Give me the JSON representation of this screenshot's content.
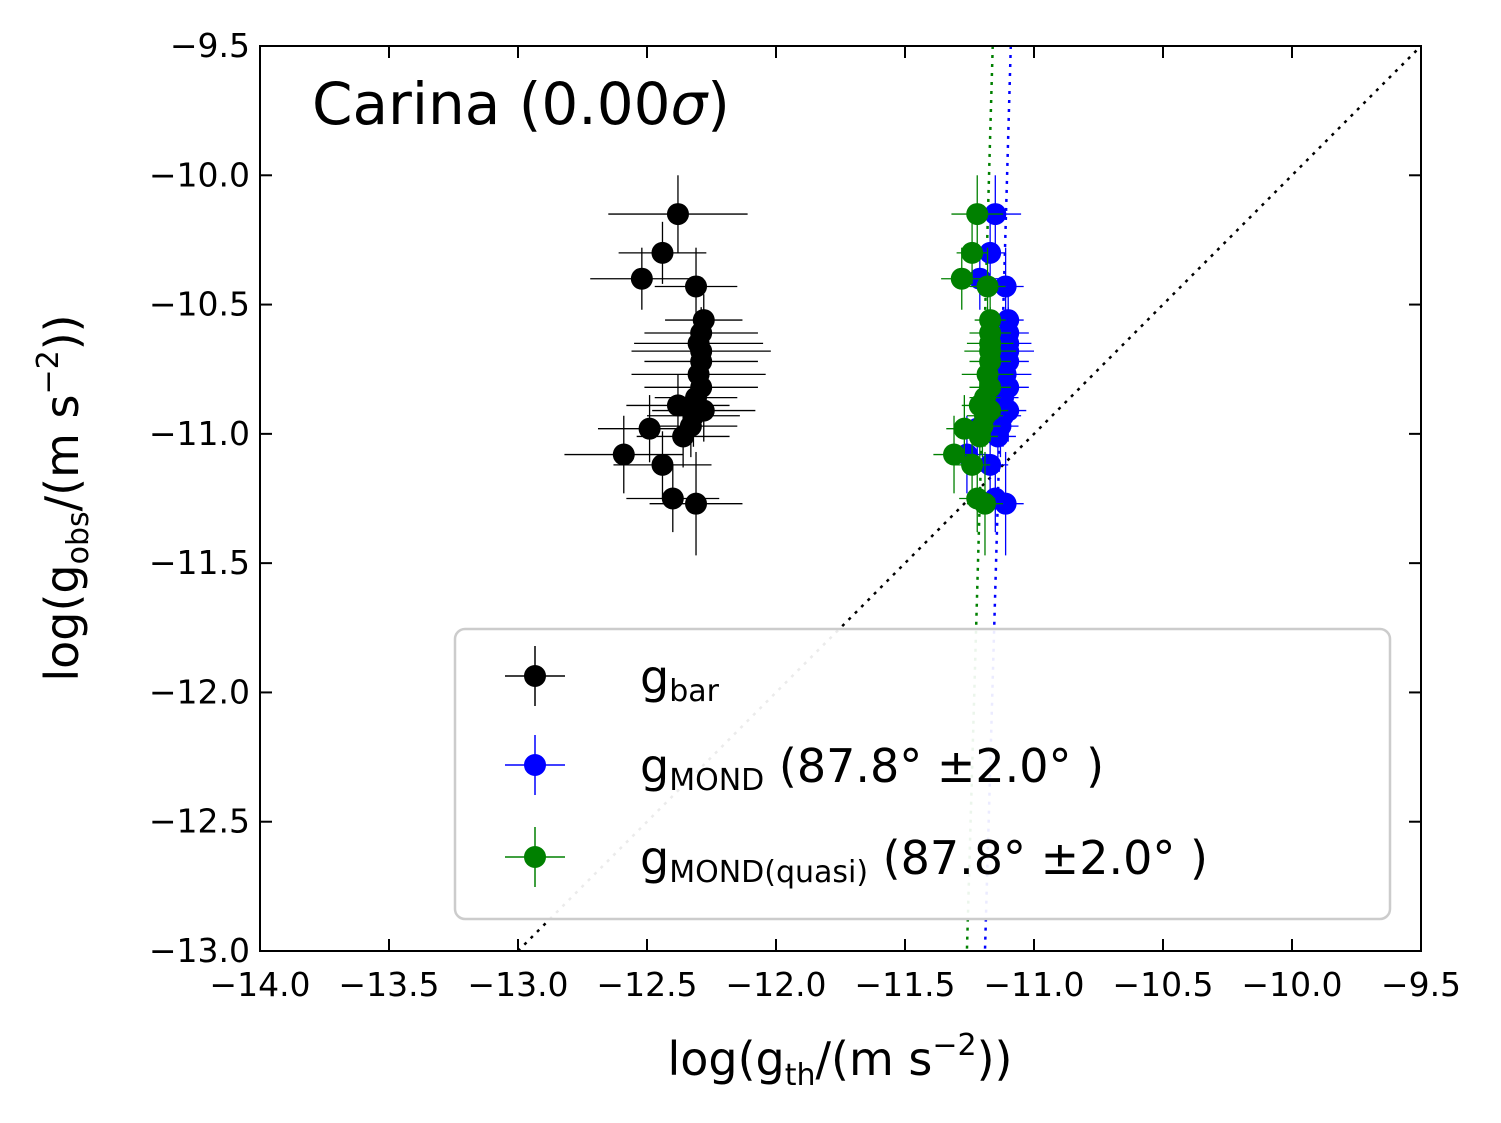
{
  "chart_data": {
    "type": "scatter",
    "title_prefix": "Carina (",
    "title_value": "0.00",
    "title_sigma": "σ",
    "title_suffix": ")",
    "xlabel": {
      "pre": "log(g",
      "sub": "th",
      "mid": "/(m s",
      "sup": "−2",
      "post": "))"
    },
    "ylabel": {
      "pre": "log(g",
      "sub": "obs",
      "mid": "/(m s",
      "sup": "−2",
      "post": "))"
    },
    "xlim": [
      -14.0,
      -9.5
    ],
    "ylim": [
      -13.0,
      -9.5
    ],
    "xticks": [
      -14.0,
      -13.5,
      -13.0,
      -12.5,
      -12.0,
      -11.5,
      -11.0,
      -10.5,
      -10.0,
      -9.5
    ],
    "xtick_labels": [
      "−14.0",
      "−13.5",
      "−13.0",
      "−12.5",
      "−12.0",
      "−11.5",
      "−11.0",
      "−10.5",
      "−10.0",
      "−9.5"
    ],
    "yticks": [
      -9.5,
      -10.0,
      -10.5,
      -11.0,
      -11.5,
      -12.0,
      -12.5,
      -13.0
    ],
    "ytick_labels": [
      "−9.5",
      "−10.0",
      "−10.5",
      "−11.0",
      "−11.5",
      "−12.0",
      "−12.5",
      "−13.0"
    ],
    "one_to_one_line": true,
    "series": [
      {
        "name": "g_bar",
        "color": "#000000",
        "legend": {
          "main": "g",
          "sub": "bar",
          "extra": ""
        },
        "fit_line": null,
        "points": [
          {
            "x": -12.38,
            "y": -10.15,
            "xerr": 0.27,
            "yerr": 0.15
          },
          {
            "x": -12.44,
            "y": -10.3,
            "xerr": 0.17,
            "yerr": 0.12
          },
          {
            "x": -12.52,
            "y": -10.4,
            "xerr": 0.2,
            "yerr": 0.12
          },
          {
            "x": -12.31,
            "y": -10.43,
            "xerr": 0.16,
            "yerr": 0.15
          },
          {
            "x": -12.28,
            "y": -10.56,
            "xerr": 0.15,
            "yerr": 0.1
          },
          {
            "x": -12.29,
            "y": -10.61,
            "xerr": 0.22,
            "yerr": 0.1
          },
          {
            "x": -12.3,
            "y": -10.65,
            "xerr": 0.25,
            "yerr": 0.12
          },
          {
            "x": -12.29,
            "y": -10.68,
            "xerr": 0.27,
            "yerr": 0.1
          },
          {
            "x": -12.29,
            "y": -10.72,
            "xerr": 0.22,
            "yerr": 0.12
          },
          {
            "x": -12.3,
            "y": -10.77,
            "xerr": 0.26,
            "yerr": 0.12
          },
          {
            "x": -12.29,
            "y": -10.82,
            "xerr": 0.22,
            "yerr": 0.12
          },
          {
            "x": -12.31,
            "y": -10.86,
            "xerr": 0.16,
            "yerr": 0.12
          },
          {
            "x": -12.38,
            "y": -10.89,
            "xerr": 0.2,
            "yerr": 0.12
          },
          {
            "x": -12.28,
            "y": -10.91,
            "xerr": 0.2,
            "yerr": 0.12
          },
          {
            "x": -12.32,
            "y": -10.93,
            "xerr": 0.18,
            "yerr": 0.12
          },
          {
            "x": -12.33,
            "y": -10.97,
            "xerr": 0.18,
            "yerr": 0.12
          },
          {
            "x": -12.36,
            "y": -11.01,
            "xerr": 0.18,
            "yerr": 0.12
          },
          {
            "x": -12.49,
            "y": -10.98,
            "xerr": 0.2,
            "yerr": 0.13
          },
          {
            "x": -12.59,
            "y": -11.08,
            "xerr": 0.23,
            "yerr": 0.15
          },
          {
            "x": -12.44,
            "y": -11.12,
            "xerr": 0.19,
            "yerr": 0.13
          },
          {
            "x": -12.4,
            "y": -11.25,
            "xerr": 0.18,
            "yerr": 0.13
          },
          {
            "x": -12.31,
            "y": -11.27,
            "xerr": 0.18,
            "yerr": 0.2
          }
        ]
      },
      {
        "name": "g_MOND",
        "color": "#0000ff",
        "legend": {
          "main": "g",
          "sub": "MOND",
          "extra": " (87.8° ±2.0° )"
        },
        "fit_line": {
          "x_at_ymax": -11.09,
          "x_at_ymin": -11.19
        },
        "points": [
          {
            "x": -11.15,
            "y": -10.15,
            "xerr": 0.1,
            "yerr": 0.15
          },
          {
            "x": -11.17,
            "y": -10.3,
            "xerr": 0.06,
            "yerr": 0.12
          },
          {
            "x": -11.21,
            "y": -10.4,
            "xerr": 0.08,
            "yerr": 0.12
          },
          {
            "x": -11.11,
            "y": -10.43,
            "xerr": 0.07,
            "yerr": 0.15
          },
          {
            "x": -11.1,
            "y": -10.56,
            "xerr": 0.06,
            "yerr": 0.1
          },
          {
            "x": -11.1,
            "y": -10.61,
            "xerr": 0.08,
            "yerr": 0.1
          },
          {
            "x": -11.1,
            "y": -10.65,
            "xerr": 0.09,
            "yerr": 0.12
          },
          {
            "x": -11.1,
            "y": -10.68,
            "xerr": 0.1,
            "yerr": 0.1
          },
          {
            "x": -11.1,
            "y": -10.72,
            "xerr": 0.08,
            "yerr": 0.12
          },
          {
            "x": -11.11,
            "y": -10.77,
            "xerr": 0.1,
            "yerr": 0.12
          },
          {
            "x": -11.1,
            "y": -10.82,
            "xerr": 0.08,
            "yerr": 0.12
          },
          {
            "x": -11.12,
            "y": -10.86,
            "xerr": 0.06,
            "yerr": 0.12
          },
          {
            "x": -11.16,
            "y": -10.89,
            "xerr": 0.07,
            "yerr": 0.12
          },
          {
            "x": -11.1,
            "y": -10.91,
            "xerr": 0.07,
            "yerr": 0.12
          },
          {
            "x": -11.12,
            "y": -10.93,
            "xerr": 0.07,
            "yerr": 0.12
          },
          {
            "x": -11.13,
            "y": -10.97,
            "xerr": 0.07,
            "yerr": 0.12
          },
          {
            "x": -11.14,
            "y": -11.01,
            "xerr": 0.07,
            "yerr": 0.12
          },
          {
            "x": -11.22,
            "y": -10.98,
            "xerr": 0.07,
            "yerr": 0.13
          },
          {
            "x": -11.26,
            "y": -11.08,
            "xerr": 0.08,
            "yerr": 0.15
          },
          {
            "x": -11.17,
            "y": -11.12,
            "xerr": 0.07,
            "yerr": 0.13
          },
          {
            "x": -11.15,
            "y": -11.25,
            "xerr": 0.07,
            "yerr": 0.13
          },
          {
            "x": -11.11,
            "y": -11.27,
            "xerr": 0.07,
            "yerr": 0.2
          }
        ]
      },
      {
        "name": "g_MOND(quasi)",
        "color": "#008000",
        "legend": {
          "main": "g",
          "sub": "MOND(quasi)",
          "extra": " (87.8° ±2.0° )"
        },
        "fit_line": {
          "x_at_ymax": -11.16,
          "x_at_ymin": -11.26
        },
        "points": [
          {
            "x": -11.22,
            "y": -10.15,
            "xerr": 0.1,
            "yerr": 0.15
          },
          {
            "x": -11.24,
            "y": -10.3,
            "xerr": 0.06,
            "yerr": 0.12
          },
          {
            "x": -11.28,
            "y": -10.4,
            "xerr": 0.08,
            "yerr": 0.12
          },
          {
            "x": -11.18,
            "y": -10.43,
            "xerr": 0.07,
            "yerr": 0.15
          },
          {
            "x": -11.17,
            "y": -10.56,
            "xerr": 0.06,
            "yerr": 0.1
          },
          {
            "x": -11.17,
            "y": -10.61,
            "xerr": 0.08,
            "yerr": 0.1
          },
          {
            "x": -11.17,
            "y": -10.65,
            "xerr": 0.09,
            "yerr": 0.12
          },
          {
            "x": -11.17,
            "y": -10.68,
            "xerr": 0.1,
            "yerr": 0.1
          },
          {
            "x": -11.17,
            "y": -10.72,
            "xerr": 0.08,
            "yerr": 0.12
          },
          {
            "x": -11.18,
            "y": -10.77,
            "xerr": 0.1,
            "yerr": 0.12
          },
          {
            "x": -11.17,
            "y": -10.82,
            "xerr": 0.08,
            "yerr": 0.12
          },
          {
            "x": -11.19,
            "y": -10.86,
            "xerr": 0.06,
            "yerr": 0.12
          },
          {
            "x": -11.21,
            "y": -10.89,
            "xerr": 0.07,
            "yerr": 0.12
          },
          {
            "x": -11.17,
            "y": -10.91,
            "xerr": 0.07,
            "yerr": 0.12
          },
          {
            "x": -11.19,
            "y": -10.93,
            "xerr": 0.07,
            "yerr": 0.12
          },
          {
            "x": -11.2,
            "y": -10.97,
            "xerr": 0.07,
            "yerr": 0.12
          },
          {
            "x": -11.21,
            "y": -11.01,
            "xerr": 0.07,
            "yerr": 0.12
          },
          {
            "x": -11.27,
            "y": -10.98,
            "xerr": 0.07,
            "yerr": 0.13
          },
          {
            "x": -11.31,
            "y": -11.08,
            "xerr": 0.08,
            "yerr": 0.15
          },
          {
            "x": -11.24,
            "y": -11.12,
            "xerr": 0.07,
            "yerr": 0.13
          },
          {
            "x": -11.22,
            "y": -11.25,
            "xerr": 0.07,
            "yerr": 0.13
          },
          {
            "x": -11.19,
            "y": -11.27,
            "xerr": 0.07,
            "yerr": 0.2
          }
        ]
      }
    ]
  }
}
